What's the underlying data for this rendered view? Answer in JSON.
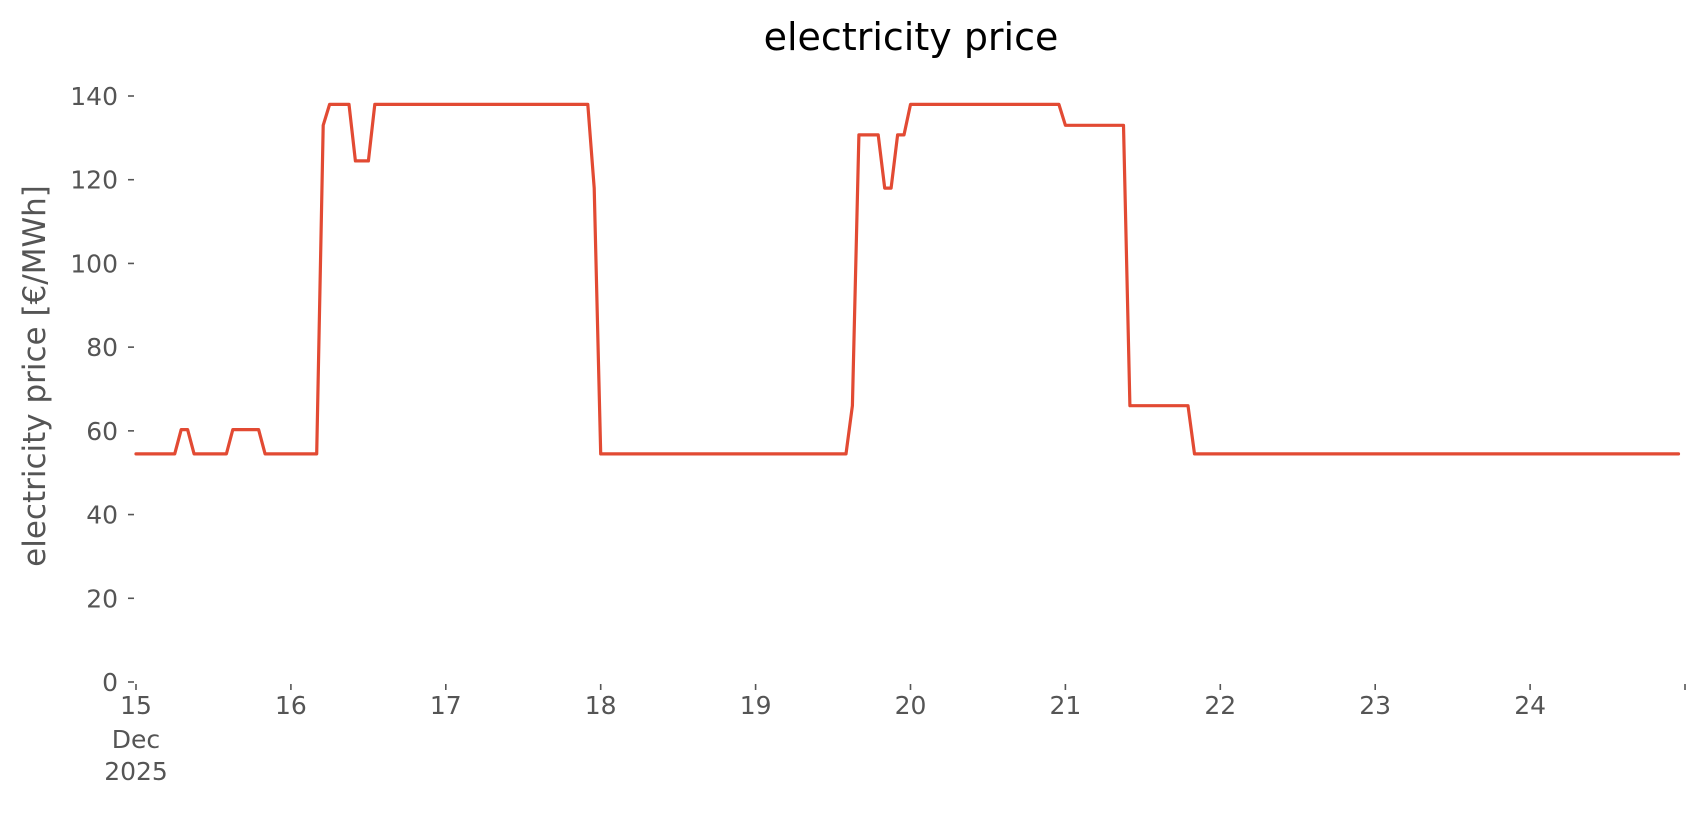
{
  "chart_data": {
    "type": "line",
    "title": "electricity price",
    "xlabel": "",
    "ylabel": "electricity price [€/MWh]",
    "xlim": [
      "2025-12-15T00:00",
      "2025-12-24T23:00"
    ],
    "ylim": [
      0,
      140
    ],
    "yticks": [
      0,
      20,
      40,
      60,
      80,
      100,
      120,
      140
    ],
    "xticks": [
      {
        "x": "2025-12-15T00:00",
        "label": "15",
        "sublabels": [
          "Dec",
          "2025"
        ]
      },
      {
        "x": "2025-12-16T00:00",
        "label": "16"
      },
      {
        "x": "2025-12-17T00:00",
        "label": "17"
      },
      {
        "x": "2025-12-18T00:00",
        "label": "18"
      },
      {
        "x": "2025-12-19T00:00",
        "label": "19"
      },
      {
        "x": "2025-12-20T00:00",
        "label": "20"
      },
      {
        "x": "2025-12-21T00:00",
        "label": "21"
      },
      {
        "x": "2025-12-22T00:00",
        "label": "22"
      },
      {
        "x": "2025-12-23T00:00",
        "label": "23"
      },
      {
        "x": "2025-12-24T00:00",
        "label": "24"
      },
      {
        "x": "2025-12-25T00:00",
        "label": ""
      }
    ],
    "grid": false,
    "colors": {
      "series": "#E24A33",
      "ticks": "#555555",
      "title": "#000000"
    },
    "series": [
      {
        "x": [
          "2025-12-15T00:00",
          "2025-12-15T06:00",
          "2025-12-15T07:00",
          "2025-12-15T08:00",
          "2025-12-15T09:00",
          "2025-12-15T14:00",
          "2025-12-15T15:00",
          "2025-12-15T19:00",
          "2025-12-15T20:00",
          "2025-12-16T04:00",
          "2025-12-16T05:00",
          "2025-12-16T06:00",
          "2025-12-16T09:00",
          "2025-12-16T10:00",
          "2025-12-16T12:00",
          "2025-12-16T13:00",
          "2025-12-17T22:00",
          "2025-12-17T23:00",
          "2025-12-18T00:00",
          "2025-12-19T14:00",
          "2025-12-19T15:00",
          "2025-12-19T16:00",
          "2025-12-19T19:00",
          "2025-12-19T20:00",
          "2025-12-19T21:00",
          "2025-12-19T22:00",
          "2025-12-19T23:00",
          "2025-12-20T00:00",
          "2025-12-20T23:00",
          "2025-12-21T00:00",
          "2025-12-21T09:00",
          "2025-12-21T10:00",
          "2025-12-21T19:00",
          "2025-12-21T20:00",
          "2025-12-24T23:00"
        ],
        "y": [
          54.5,
          54.5,
          60.3,
          60.3,
          54.5,
          54.5,
          60.3,
          60.3,
          54.5,
          54.5,
          133,
          138,
          138,
          124.5,
          124.5,
          138,
          138,
          118,
          54.5,
          54.5,
          66,
          130.7,
          130.7,
          118,
          118,
          130.7,
          130.7,
          138,
          138,
          133,
          133,
          66,
          66,
          54.5,
          54.5
        ]
      }
    ]
  }
}
